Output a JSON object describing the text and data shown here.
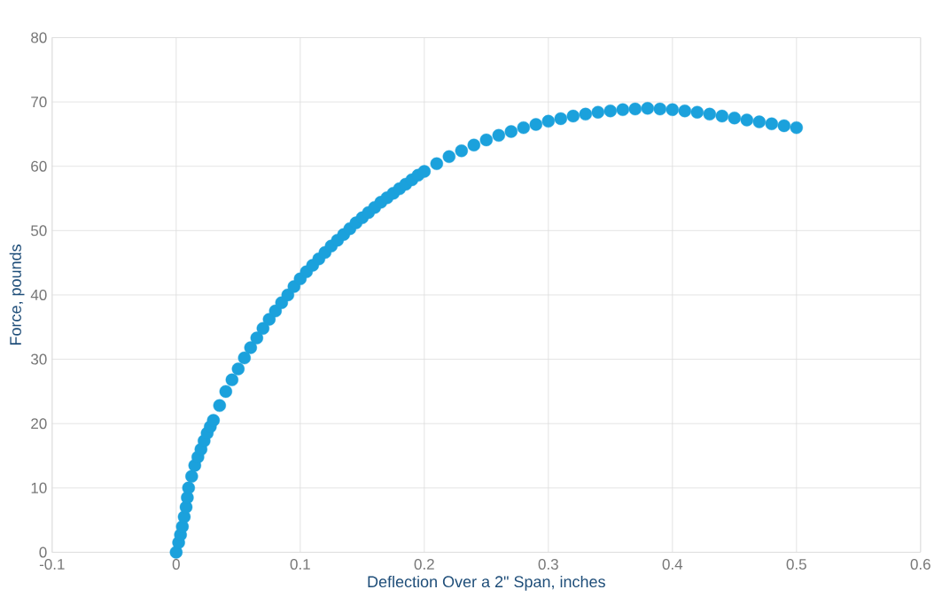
{
  "chart_data": {
    "type": "scatter",
    "xlabel": "Deflection  Over  a 2\" Span, inches",
    "ylabel": "Force, pounds",
    "x": [
      0,
      0.002,
      0.0035,
      0.005,
      0.0065,
      0.008,
      0.009,
      0.01,
      0.0125,
      0.015,
      0.0175,
      0.02,
      0.0225,
      0.025,
      0.0275,
      0.03,
      0.035,
      0.04,
      0.045,
      0.05,
      0.055,
      0.06,
      0.065,
      0.07,
      0.075,
      0.08,
      0.085,
      0.09,
      0.095,
      0.1,
      0.105,
      0.11,
      0.115,
      0.12,
      0.125,
      0.13,
      0.135,
      0.14,
      0.145,
      0.15,
      0.155,
      0.16,
      0.165,
      0.17,
      0.175,
      0.18,
      0.185,
      0.19,
      0.195,
      0.2,
      0.21,
      0.22,
      0.23,
      0.24,
      0.25,
      0.26,
      0.27,
      0.28,
      0.29,
      0.3,
      0.31,
      0.32,
      0.33,
      0.34,
      0.35,
      0.36,
      0.37,
      0.38,
      0.39,
      0.4,
      0.41,
      0.42,
      0.43,
      0.44,
      0.45,
      0.46,
      0.47,
      0.48,
      0.49,
      0.5
    ],
    "values": [
      0,
      1.5,
      2.7,
      4,
      5.5,
      7,
      8.5,
      10,
      11.8,
      13.5,
      14.8,
      16,
      17.3,
      18.5,
      19.5,
      20.5,
      22.8,
      25,
      26.8,
      28.5,
      30.2,
      31.8,
      33.3,
      34.8,
      36.2,
      37.5,
      38.8,
      40,
      41.3,
      42.5,
      43.6,
      44.6,
      45.6,
      46.6,
      47.6,
      48.5,
      49.4,
      50.3,
      51.2,
      52,
      52.8,
      53.6,
      54.4,
      55.1,
      55.8,
      56.5,
      57.2,
      57.9,
      58.6,
      59.2,
      60.4,
      61.5,
      62.4,
      63.3,
      64.1,
      64.8,
      65.4,
      66,
      66.5,
      67,
      67.4,
      67.8,
      68.1,
      68.4,
      68.6,
      68.8,
      68.9,
      69,
      68.9,
      68.8,
      68.6,
      68.4,
      68.1,
      67.8,
      67.5,
      67.2,
      66.9,
      66.6,
      66.3,
      66
    ],
    "color": "#1ba1dc",
    "marker": "circle",
    "grid": true,
    "xlim": [
      -0.1,
      0.6
    ],
    "xticks": [
      -0.1,
      0,
      0.1,
      0.2,
      0.3,
      0.4,
      0.5,
      0.6
    ],
    "ylim": [
      0,
      80
    ],
    "yticks": [
      0,
      10,
      20,
      30,
      40,
      50,
      60,
      70,
      80
    ]
  }
}
